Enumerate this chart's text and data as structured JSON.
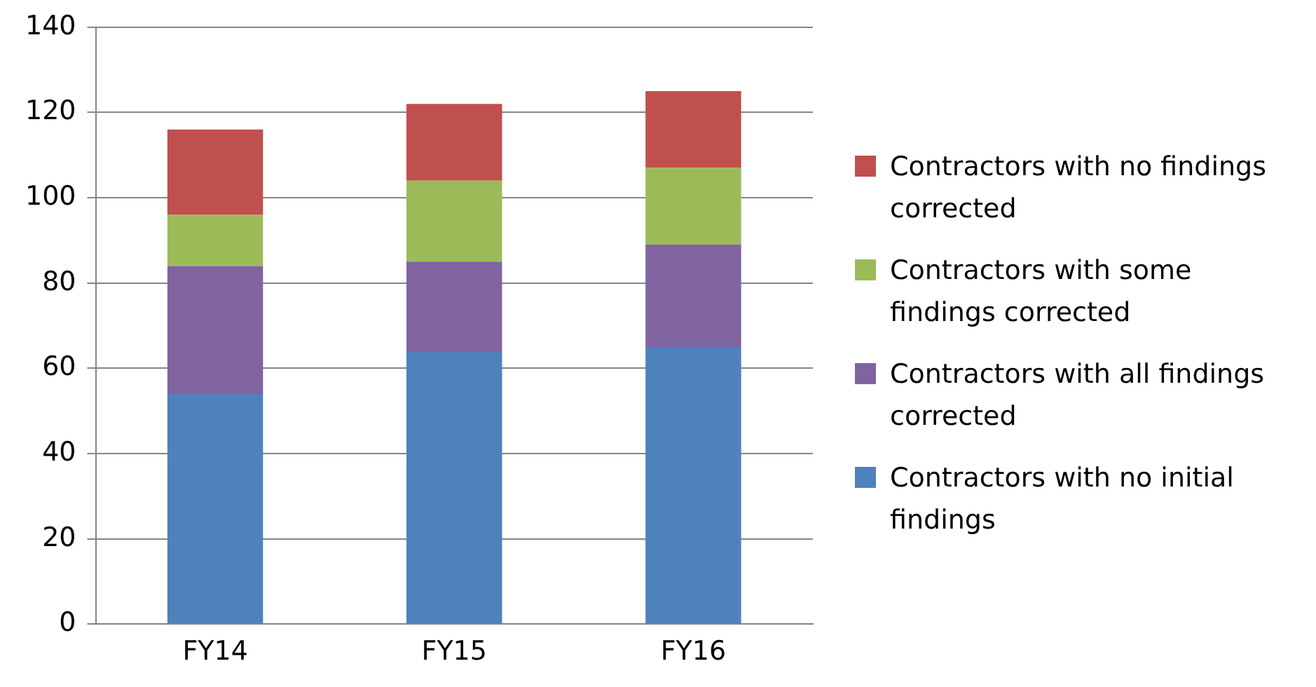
{
  "chart_data": {
    "type": "bar",
    "stacked": true,
    "categories": [
      "FY14",
      "FY15",
      "FY16"
    ],
    "series": [
      {
        "name": "Contractors with no initial findings",
        "color": "#4f81bd",
        "values": [
          54,
          64,
          65
        ]
      },
      {
        "name": "Contractors with all findings corrected",
        "color": "#8064a2",
        "values": [
          30,
          21,
          24
        ]
      },
      {
        "name": "Contractors with some findings corrected",
        "color": "#9bbb59",
        "values": [
          12,
          19,
          18
        ]
      },
      {
        "name": "Contractors with no findings corrected",
        "color": "#c0504d",
        "values": [
          20,
          18,
          18
        ]
      }
    ],
    "ylim": [
      0,
      140
    ],
    "yticks": [
      0,
      20,
      40,
      60,
      80,
      100,
      120,
      140
    ],
    "grid": "y",
    "legend": "right"
  }
}
